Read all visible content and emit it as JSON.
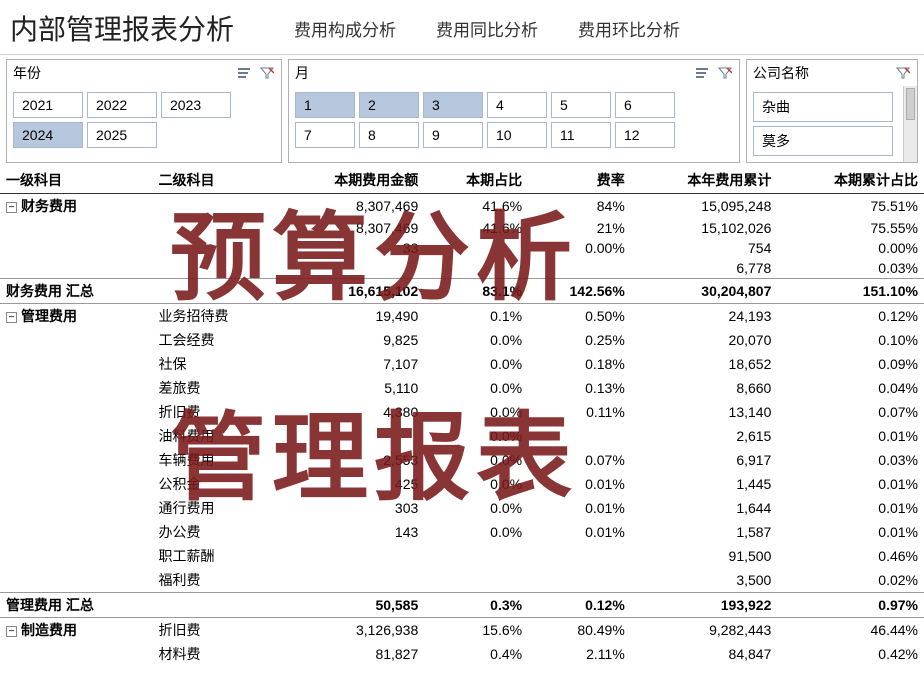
{
  "header": {
    "title": "内部管理报表分析",
    "tabs": [
      "费用构成分析",
      "费用同比分析",
      "费用环比分析"
    ]
  },
  "slicers": {
    "year": {
      "label": "年份",
      "items": [
        "2021",
        "2022",
        "2023",
        "2024",
        "2025"
      ],
      "selected": [
        "2024"
      ]
    },
    "month": {
      "label": "月",
      "items": [
        "1",
        "2",
        "3",
        "4",
        "5",
        "6",
        "7",
        "8",
        "9",
        "10",
        "11",
        "12"
      ],
      "selected": [
        "1",
        "2",
        "3"
      ]
    },
    "company": {
      "label": "公司名称",
      "items": [
        "杂曲",
        "莫多"
      ],
      "selected": []
    }
  },
  "table": {
    "columns": [
      "一级科目",
      "二级科目",
      "本期费用金额",
      "本期占比",
      "费率",
      "本年费用累计",
      "本期累计占比"
    ],
    "rows": [
      {
        "type": "cat",
        "cat": "财务费用",
        "sub": "",
        "amt": "8,307,469",
        "pct": "41.6%",
        "rate": "84%",
        "ytd": "15,095,248",
        "ypct": "75.51%"
      },
      {
        "type": "",
        "cat": "",
        "sub": "",
        "amt": "8,307,469",
        "pct": "41.6%",
        "rate": "21%",
        "ytd": "15,102,026",
        "ypct": "75.55%"
      },
      {
        "type": "",
        "cat": "",
        "sub": "",
        "amt": "33",
        "pct": "",
        "rate": "0.00%",
        "ytd": "754",
        "ypct": "0.00%"
      },
      {
        "type": "",
        "cat": "",
        "sub": "",
        "amt": "",
        "pct": "",
        "rate": "",
        "ytd": "6,778",
        "ypct": "0.03%"
      },
      {
        "type": "total",
        "cat": "财务费用 汇总",
        "sub": "",
        "amt": "16,615,102",
        "pct": "83.1%",
        "rate": "142.56%",
        "ytd": "30,204,807",
        "ypct": "151.10%"
      },
      {
        "type": "cat",
        "cat": "管理费用",
        "sub": "业务招待费",
        "amt": "19,490",
        "pct": "0.1%",
        "rate": "0.50%",
        "ytd": "24,193",
        "ypct": "0.12%"
      },
      {
        "type": "",
        "cat": "",
        "sub": "工会经费",
        "amt": "9,825",
        "pct": "0.0%",
        "rate": "0.25%",
        "ytd": "20,070",
        "ypct": "0.10%"
      },
      {
        "type": "",
        "cat": "",
        "sub": "社保",
        "amt": "7,107",
        "pct": "0.0%",
        "rate": "0.18%",
        "ytd": "18,652",
        "ypct": "0.09%"
      },
      {
        "type": "",
        "cat": "",
        "sub": "差旅费",
        "amt": "5,110",
        "pct": "0.0%",
        "rate": "0.13%",
        "ytd": "8,660",
        "ypct": "0.04%"
      },
      {
        "type": "",
        "cat": "",
        "sub": "折旧费",
        "amt": "4,380",
        "pct": "0.0%",
        "rate": "0.11%",
        "ytd": "13,140",
        "ypct": "0.07%"
      },
      {
        "type": "",
        "cat": "",
        "sub": "油料费用",
        "amt": "",
        "pct": "0.0%",
        "rate": "",
        "ytd": "2,615",
        "ypct": "0.01%"
      },
      {
        "type": "",
        "cat": "",
        "sub": "车辆费用",
        "amt": "2,553",
        "pct": "0.0%",
        "rate": "0.07%",
        "ytd": "6,917",
        "ypct": "0.03%"
      },
      {
        "type": "",
        "cat": "",
        "sub": "公积金",
        "amt": "425",
        "pct": "0.0%",
        "rate": "0.01%",
        "ytd": "1,445",
        "ypct": "0.01%"
      },
      {
        "type": "",
        "cat": "",
        "sub": "通行费用",
        "amt": "303",
        "pct": "0.0%",
        "rate": "0.01%",
        "ytd": "1,644",
        "ypct": "0.01%"
      },
      {
        "type": "",
        "cat": "",
        "sub": "办公费",
        "amt": "143",
        "pct": "0.0%",
        "rate": "0.01%",
        "ytd": "1,587",
        "ypct": "0.01%"
      },
      {
        "type": "",
        "cat": "",
        "sub": "职工薪酬",
        "amt": "",
        "pct": "",
        "rate": "",
        "ytd": "91,500",
        "ypct": "0.46%"
      },
      {
        "type": "",
        "cat": "",
        "sub": "福利费",
        "amt": "",
        "pct": "",
        "rate": "",
        "ytd": "3,500",
        "ypct": "0.02%"
      },
      {
        "type": "total",
        "cat": "管理费用 汇总",
        "sub": "",
        "amt": "50,585",
        "pct": "0.3%",
        "rate": "0.12%",
        "ytd": "193,922",
        "ypct": "0.97%"
      },
      {
        "type": "cat",
        "cat": "制造费用",
        "sub": "折旧费",
        "amt": "3,126,938",
        "pct": "15.6%",
        "rate": "80.49%",
        "ytd": "9,282,443",
        "ypct": "46.44%"
      },
      {
        "type": "",
        "cat": "",
        "sub": "材料费",
        "amt": "81,827",
        "pct": "0.4%",
        "rate": "2.11%",
        "ytd": "84,847",
        "ypct": "0.42%"
      }
    ]
  },
  "watermark": {
    "line1": "预算分析",
    "line2": "管理报表"
  },
  "colors": {
    "chip_selected": "#b7c8de",
    "watermark": "#7a1a1a"
  }
}
